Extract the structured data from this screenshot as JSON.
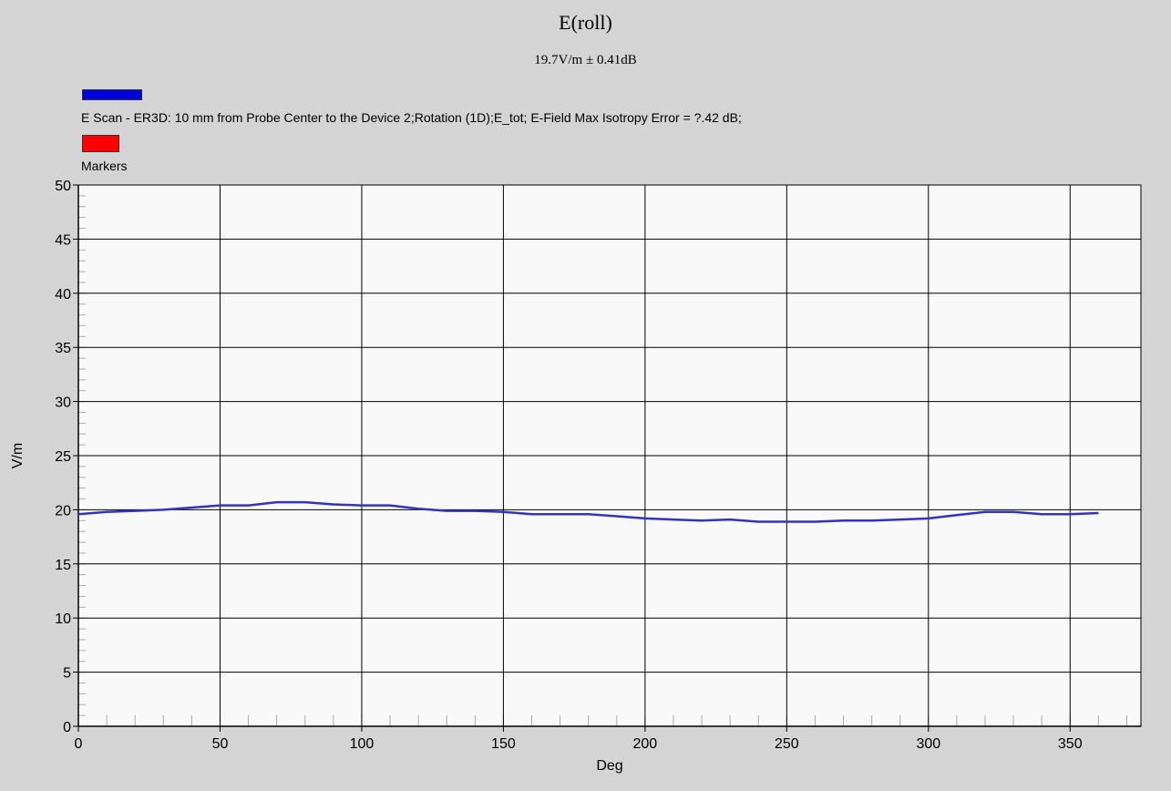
{
  "chart_data": {
    "type": "line",
    "title": "E(roll)",
    "subtitle": "19.7V/m ± 0.41dB",
    "xlabel": "Deg",
    "ylabel": "V/m",
    "xlim": [
      0,
      375
    ],
    "ylim": [
      0,
      50
    ],
    "x_ticks": [
      0,
      50,
      100,
      150,
      200,
      250,
      300,
      350
    ],
    "y_ticks": [
      0,
      5,
      10,
      15,
      20,
      25,
      30,
      35,
      40,
      45,
      50
    ],
    "grid": true,
    "legend_placement": "top-left",
    "series": [
      {
        "name": "E Scan - ER3D: 10 mm from Probe Center to the Device 2;Rotation (1D);E_tot; E-Field Max Isotropy Error = ?.42 dB;",
        "color": "#3333bb",
        "x": [
          0,
          10,
          20,
          30,
          40,
          50,
          60,
          70,
          80,
          90,
          100,
          110,
          120,
          130,
          140,
          150,
          160,
          170,
          180,
          190,
          200,
          210,
          220,
          230,
          240,
          250,
          260,
          270,
          280,
          290,
          300,
          310,
          320,
          330,
          340,
          350,
          360
        ],
        "values": [
          19.6,
          19.8,
          19.9,
          20.0,
          20.2,
          20.4,
          20.4,
          20.7,
          20.7,
          20.5,
          20.4,
          20.4,
          20.1,
          19.9,
          19.9,
          19.8,
          19.6,
          19.6,
          19.6,
          19.4,
          19.2,
          19.1,
          19.0,
          19.1,
          18.9,
          18.9,
          18.9,
          19.0,
          19.0,
          19.1,
          19.2,
          19.5,
          19.8,
          19.8,
          19.6,
          19.6,
          19.7
        ]
      },
      {
        "name": "Markers",
        "color": "#ff0000",
        "x": [],
        "values": []
      }
    ]
  },
  "background_color": "#d4d4d4",
  "plot_background": "#f9f9f9"
}
